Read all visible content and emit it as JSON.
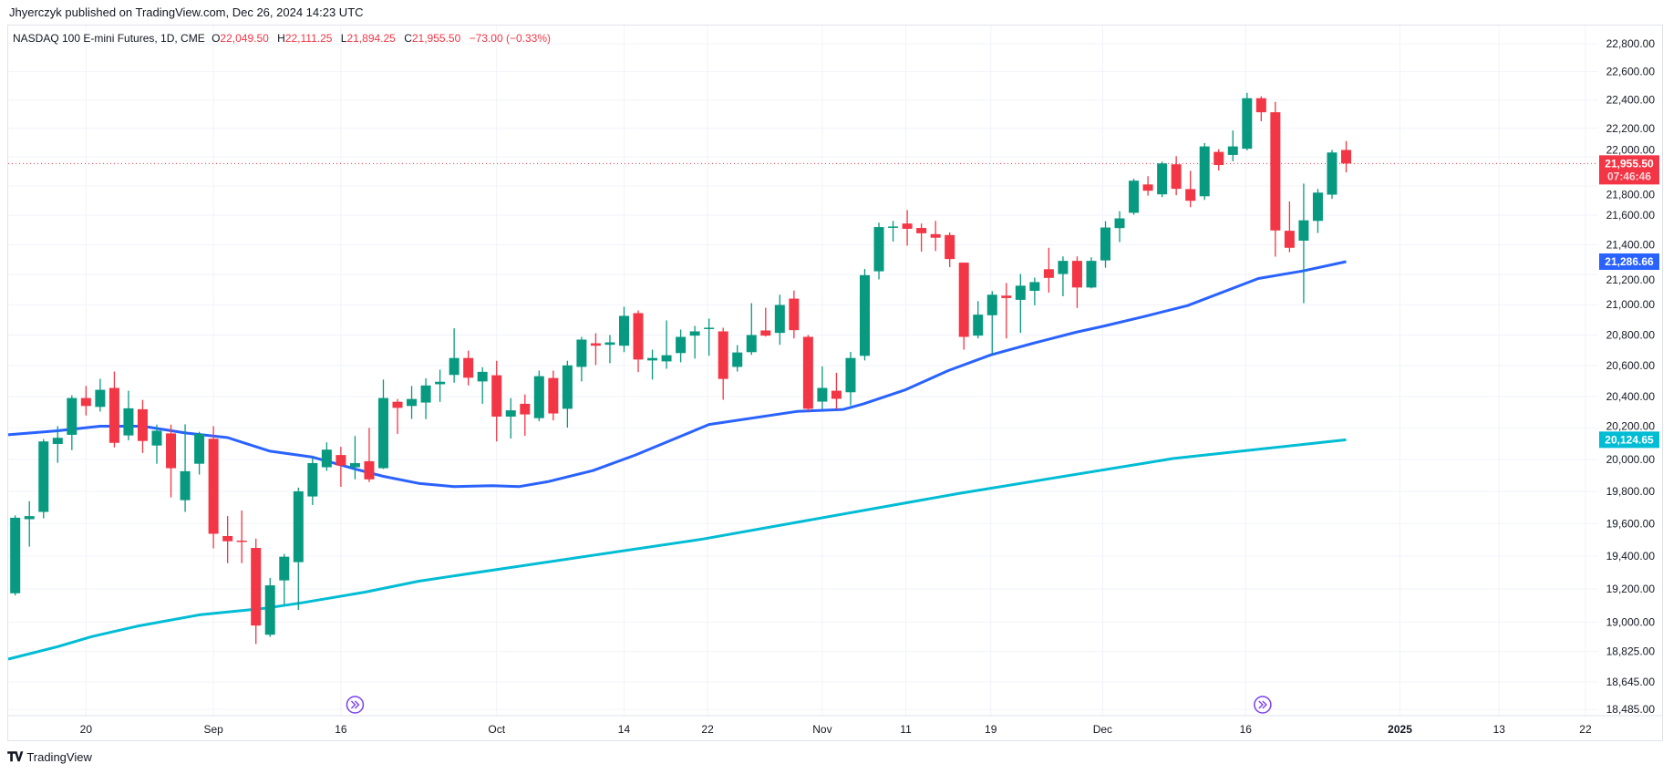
{
  "header": {
    "published": "Jhyerczyk published on TradingView.com, Dec 26, 2024 14:23 UTC"
  },
  "legend": {
    "symbol": "NASDAQ 100 E-mini Futures, 1D, CME",
    "open_key": "O",
    "open": "22,049.50",
    "high_key": "H",
    "high": "22,111.25",
    "low_key": "L",
    "low": "21,894.25",
    "close_key": "C",
    "close": "21,955.50",
    "change": "−73.00 (−0.33%)"
  },
  "price_tags": {
    "last_price": "21,955.50",
    "countdown": "07:46:46",
    "ma_fast": "21,286.66",
    "ma_slow": "20,124.65"
  },
  "colors": {
    "up": "#089981",
    "down": "#F23645",
    "ma_fast": "#2962FF",
    "ma_slow": "#00BCD4",
    "event": "#7B3FF2",
    "grid": "#f0f3fa"
  },
  "footer": {
    "brand": "TradingView"
  },
  "chart_data": {
    "type": "candlestick",
    "title": "NASDAQ 100 E-mini Futures, 1D, CME",
    "price_scale": "log",
    "y_ticks": [
      "22,800.00",
      "22,600.00",
      "22,400.00",
      "22,200.00",
      "22,000.00",
      "21,800.00",
      "21,600.00",
      "21,400.00",
      "21,200.00",
      "21,000.00",
      "20,800.00",
      "20,600.00",
      "20,400.00",
      "20,200.00",
      "20,000.00",
      "19,800.00",
      "19,600.00",
      "19,400.00",
      "19,200.00",
      "19,000.00",
      "18,825.00",
      "18,645.00",
      "18,485.00"
    ],
    "y_tick_values": [
      22800,
      22600,
      22400,
      22200,
      22000,
      21800,
      21600,
      21400,
      21200,
      21000,
      20800,
      20600,
      20400,
      20200,
      20000,
      19800,
      19600,
      19400,
      19200,
      19000,
      18825,
      18645,
      18485
    ],
    "x_ticks": [
      {
        "label": "20",
        "bar": 5
      },
      {
        "label": "Sep",
        "bar": 14
      },
      {
        "label": "16",
        "bar": 23
      },
      {
        "label": "Oct",
        "bar": 34
      },
      {
        "label": "14",
        "bar": 43
      },
      {
        "label": "22",
        "bar": 48.9
      },
      {
        "label": "Nov",
        "bar": 57
      },
      {
        "label": "11",
        "bar": 62.9
      },
      {
        "label": "19",
        "bar": 68.9
      },
      {
        "label": "Dec",
        "bar": 76.8
      },
      {
        "label": "16",
        "bar": 86.9
      },
      {
        "label": "2025",
        "bar": 97.8
      },
      {
        "label": "13",
        "bar": 104.8
      },
      {
        "label": "22",
        "bar": 110.9
      }
    ],
    "ohlc": [
      [
        19174,
        19651,
        19161,
        19636
      ],
      [
        19627,
        19739,
        19458,
        19646
      ],
      [
        19672,
        20129,
        19632,
        20114
      ],
      [
        20098,
        20211,
        19979,
        20137
      ],
      [
        20156,
        20409,
        20059,
        20391
      ],
      [
        20391,
        20469,
        20279,
        20340
      ],
      [
        20334,
        20515,
        20304,
        20444
      ],
      [
        20456,
        20562,
        20076,
        20105
      ],
      [
        20152,
        20438,
        20121,
        20325
      ],
      [
        20319,
        20379,
        20041,
        20117
      ],
      [
        20088,
        20221,
        19973,
        20182
      ],
      [
        20165,
        20221,
        19762,
        19945
      ],
      [
        19745,
        20223,
        19672,
        19926
      ],
      [
        19973,
        20175,
        19905,
        20163
      ],
      [
        20131,
        20211,
        19447,
        19537
      ],
      [
        19523,
        19646,
        19357,
        19491
      ],
      [
        19495,
        19681,
        19357,
        19491
      ],
      [
        19450,
        19507,
        18870,
        18980
      ],
      [
        18925,
        19267,
        18912,
        19222
      ],
      [
        19252,
        19413,
        19105,
        19396
      ],
      [
        19363,
        19823,
        19074,
        19800
      ],
      [
        19768,
        20015,
        19715,
        19977
      ],
      [
        19951,
        20108,
        19928,
        20062
      ],
      [
        20028,
        20080,
        19828,
        19962
      ],
      [
        19951,
        20148,
        19875,
        19977
      ],
      [
        19989,
        20200,
        19858,
        19875
      ],
      [
        19945,
        20510,
        19940,
        20391
      ],
      [
        20367,
        20385,
        20162,
        20328
      ],
      [
        20340,
        20469,
        20257,
        20385
      ],
      [
        20362,
        20518,
        20256,
        20472
      ],
      [
        20480,
        20574,
        20366,
        20496
      ],
      [
        20540,
        20844,
        20490,
        20650
      ],
      [
        20650,
        20698,
        20472,
        20522
      ],
      [
        20498,
        20590,
        20354,
        20560
      ],
      [
        20538,
        20632,
        20114,
        20272
      ],
      [
        20272,
        20390,
        20132,
        20312
      ],
      [
        20354,
        20414,
        20150,
        20286
      ],
      [
        20262,
        20568,
        20242,
        20532
      ],
      [
        20520,
        20568,
        20248,
        20292
      ],
      [
        20322,
        20632,
        20202,
        20602
      ],
      [
        20592,
        20788,
        20498,
        20770
      ],
      [
        20746,
        20812,
        20604,
        20730
      ],
      [
        20736,
        20800,
        20616,
        20752
      ],
      [
        20730,
        20986,
        20688,
        20926
      ],
      [
        20944,
        20962,
        20558,
        20640
      ],
      [
        20634,
        20704,
        20510,
        20650
      ],
      [
        20628,
        20896,
        20580,
        20668
      ],
      [
        20682,
        20836,
        20622,
        20788
      ],
      [
        20796,
        20860,
        20646,
        20824
      ],
      [
        20844,
        20908,
        20664,
        20848
      ],
      [
        20824,
        20848,
        20380,
        20514
      ],
      [
        20592,
        20734,
        20562,
        20686
      ],
      [
        20688,
        21010,
        20670,
        20800
      ],
      [
        20830,
        20980,
        20790,
        20796
      ],
      [
        20814,
        21066,
        20736,
        20998
      ],
      [
        21040,
        21094,
        20778,
        20832
      ],
      [
        20788,
        20800,
        20306,
        20322
      ],
      [
        20368,
        20595,
        20320,
        20456
      ],
      [
        20438,
        20554,
        20320,
        20386
      ],
      [
        20428,
        20690,
        20344,
        20650
      ],
      [
        20664,
        21238,
        20634,
        21196
      ],
      [
        21222,
        21550,
        21168,
        21520
      ],
      [
        21516,
        21562,
        21422,
        21524
      ],
      [
        21544,
        21636,
        21394,
        21508
      ],
      [
        21514,
        21544,
        21354,
        21478
      ],
      [
        21472,
        21562,
        21358,
        21448
      ],
      [
        21466,
        21484,
        21250,
        21304
      ],
      [
        21280,
        21280,
        20704,
        20788
      ],
      [
        20796,
        21024,
        20778,
        20934
      ],
      [
        20930,
        21090,
        20676,
        21066
      ],
      [
        21060,
        21144,
        20778,
        21044
      ],
      [
        21032,
        21204,
        20814,
        21126
      ],
      [
        21092,
        21180,
        20996,
        21150
      ],
      [
        21236,
        21380,
        21080,
        21178
      ],
      [
        21204,
        21322,
        21056,
        21292
      ],
      [
        21292,
        21322,
        20978,
        21114
      ],
      [
        21114,
        21316,
        21108,
        21292
      ],
      [
        21295,
        21560,
        21246,
        21517
      ],
      [
        21513,
        21628,
        21418,
        21579
      ],
      [
        21617,
        21850,
        21604,
        21837
      ],
      [
        21811,
        21868,
        21734,
        21768
      ],
      [
        21743,
        21968,
        21724,
        21956
      ],
      [
        21950,
        22006,
        21737,
        21781
      ],
      [
        21779,
        21905,
        21655,
        21699
      ],
      [
        21730,
        22097,
        21705,
        22074
      ],
      [
        22036,
        22055,
        21907,
        21945
      ],
      [
        22015,
        22185,
        21971,
        22074
      ],
      [
        22058,
        22450,
        22046,
        22412
      ],
      [
        22412,
        22425,
        22250,
        22313
      ],
      [
        22313,
        22387,
        21320,
        21497
      ],
      [
        21495,
        21695,
        21350,
        21380
      ],
      [
        21428,
        21817,
        21010,
        21566
      ],
      [
        21562,
        21780,
        21480,
        21755
      ],
      [
        21741,
        22050,
        21712,
        22032
      ],
      [
        22049.5,
        22111.25,
        21894.25,
        21955.5
      ]
    ],
    "ma_fast": [
      [
        -0.5,
        20156
      ],
      [
        3,
        20182
      ],
      [
        6,
        20211
      ],
      [
        9,
        20211
      ],
      [
        12,
        20168
      ],
      [
        15,
        20138
      ],
      [
        18,
        20052
      ],
      [
        21,
        20015
      ],
      [
        24,
        19940
      ],
      [
        26,
        19894
      ],
      [
        28.5,
        19850
      ],
      [
        31,
        19830
      ],
      [
        33.7,
        19835
      ],
      [
        35.6,
        19830
      ],
      [
        37.6,
        19860
      ],
      [
        40.8,
        19930
      ],
      [
        43.8,
        20028
      ],
      [
        49,
        20222
      ],
      [
        55.2,
        20305
      ],
      [
        58.5,
        20318
      ],
      [
        59.9,
        20353
      ],
      [
        62.9,
        20445
      ],
      [
        65.9,
        20568
      ],
      [
        68.9,
        20670
      ],
      [
        71.9,
        20746
      ],
      [
        74.9,
        20818
      ],
      [
        76.9,
        20859
      ],
      [
        79.7,
        20921
      ],
      [
        82.8,
        20994
      ],
      [
        87.8,
        21174
      ],
      [
        90.9,
        21224
      ],
      [
        94,
        21286.66
      ]
    ],
    "ma_slow": [
      [
        -0.5,
        18780
      ],
      [
        3,
        18854
      ],
      [
        5.4,
        18914
      ],
      [
        8.6,
        18976
      ],
      [
        13.1,
        19045
      ],
      [
        17.6,
        19083
      ],
      [
        20.2,
        19116
      ],
      [
        24.7,
        19181
      ],
      [
        28.5,
        19247
      ],
      [
        30.5,
        19273
      ],
      [
        48.6,
        19505
      ],
      [
        66.7,
        19788
      ],
      [
        81.8,
        20006
      ],
      [
        94,
        20124.65
      ]
    ],
    "events": [
      24,
      88.1
    ],
    "last_price": 21955.5
  }
}
